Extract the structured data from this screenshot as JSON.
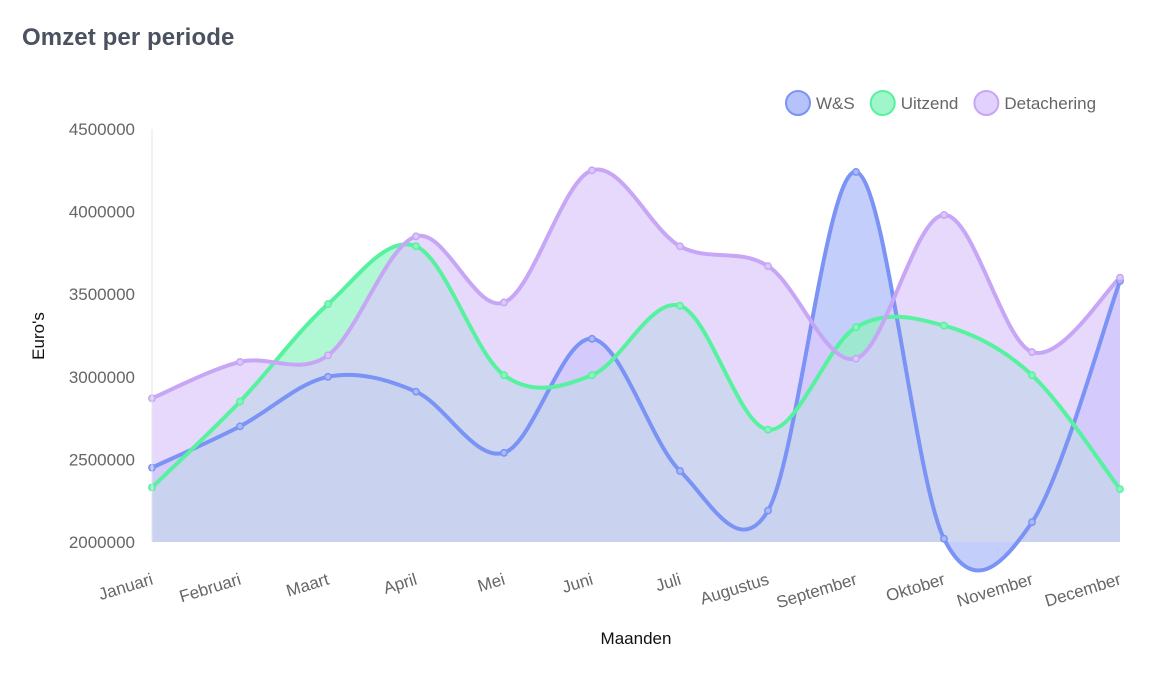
{
  "card": {
    "title": "Omzet per periode"
  },
  "chart_data": {
    "type": "area",
    "xlabel": "Maanden",
    "ylabel": "Euro's",
    "ylim": [
      2000000,
      4500000
    ],
    "yticks": [
      2000000,
      2500000,
      3000000,
      3500000,
      4000000,
      4500000
    ],
    "grid": false,
    "legend": "top-right",
    "categories": [
      "Januari",
      "Februari",
      "Maart",
      "April",
      "Mei",
      "Juni",
      "Juli",
      "Augustus",
      "September",
      "Oktober",
      "November",
      "December"
    ],
    "series": [
      {
        "name": "W&S",
        "stroke": "#7b93f5",
        "fill": "#a9b9fa",
        "values": [
          2450000,
          2700000,
          3000000,
          2910000,
          2540000,
          3230000,
          2430000,
          2190000,
          4240000,
          2020000,
          2120000,
          3580000
        ]
      },
      {
        "name": "Uitzend",
        "stroke": "#57f2a0",
        "fill": "#8ff3c1",
        "values": [
          2330000,
          2850000,
          3440000,
          3790000,
          3010000,
          3010000,
          3430000,
          2680000,
          3300000,
          3310000,
          3010000,
          2320000
        ]
      },
      {
        "name": "Detachering",
        "stroke": "#c7a6f6",
        "fill": "#dcc9fb",
        "values": [
          2870000,
          3090000,
          3130000,
          3850000,
          3450000,
          4250000,
          3790000,
          3670000,
          3110000,
          3980000,
          3150000,
          3600000
        ]
      }
    ]
  }
}
